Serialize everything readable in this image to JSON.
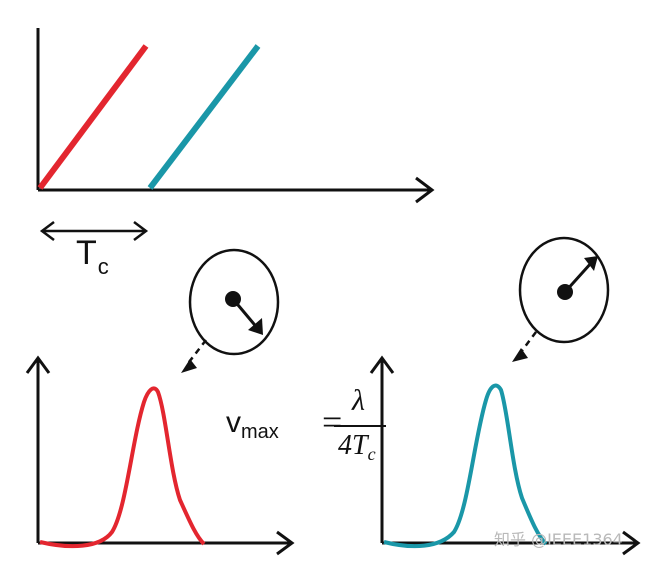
{
  "labels": {
    "period_main": "T",
    "period_sub": "c",
    "formula_var_main": "v",
    "formula_var_sub": "max",
    "formula_eq": "=",
    "formula_num": "λ",
    "formula_den_main": "4T",
    "formula_den_sub": "c"
  },
  "watermark": "知乎 @IEEE1364",
  "colors": {
    "first_chirp": "#e3262f",
    "second_chirp": "#1a97a8",
    "ink": "#111111"
  },
  "icons": {
    "left_object": "rotating-phasor-icon",
    "right_object": "rotating-phasor-icon"
  }
}
